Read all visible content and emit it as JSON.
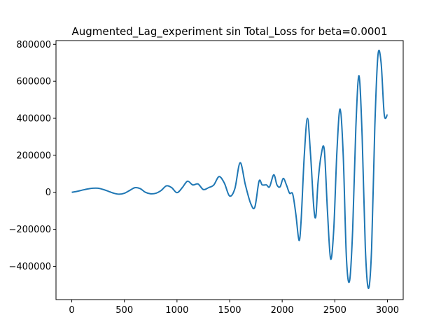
{
  "chart_data": {
    "type": "line",
    "title": "Augmented_Lag_experiment sin Total_Loss for beta=0.0001",
    "xlabel": "",
    "ylabel": "",
    "xlim": [
      -150,
      3150
    ],
    "ylim": [
      -580000,
      820000
    ],
    "grid": false,
    "x_ticks": [
      0,
      500,
      1000,
      1500,
      2000,
      2500,
      3000
    ],
    "x_tick_labels": [
      "0",
      "500",
      "1000",
      "1500",
      "2000",
      "2500",
      "3000"
    ],
    "y_ticks": [
      -400000,
      -200000,
      0,
      200000,
      400000,
      600000,
      800000
    ],
    "y_tick_labels": [
      "−400000",
      "−200000",
      "0",
      "200000",
      "400000",
      "600000",
      "800000"
    ],
    "series": [
      {
        "color": "#1f77b4",
        "x": [
          0,
          50,
          100,
          150,
          200,
          250,
          300,
          350,
          400,
          450,
          500,
          550,
          600,
          650,
          700,
          750,
          800,
          850,
          900,
          950,
          1000,
          1050,
          1100,
          1150,
          1200,
          1250,
          1300,
          1350,
          1400,
          1450,
          1500,
          1550,
          1600,
          1650,
          1700,
          1740,
          1780,
          1810,
          1850,
          1880,
          1920,
          1950,
          1980,
          2010,
          2040,
          2070,
          2100,
          2130,
          2160,
          2180,
          2210,
          2240,
          2270,
          2300,
          2320,
          2340,
          2370,
          2400,
          2430,
          2460,
          2490,
          2520,
          2550,
          2580,
          2610,
          2640,
          2670,
          2700,
          2730,
          2760,
          2790,
          2820,
          2850,
          2880,
          2910,
          2940,
          2970,
          3000
        ],
        "y": [
          0,
          5000,
          12000,
          18000,
          22000,
          22000,
          15000,
          5000,
          -5000,
          -10000,
          -5000,
          10000,
          25000,
          20000,
          0,
          -8000,
          -5000,
          10000,
          35000,
          25000,
          -2000,
          25000,
          60000,
          40000,
          45000,
          15000,
          25000,
          40000,
          85000,
          50000,
          -20000,
          20000,
          160000,
          40000,
          -60000,
          -80000,
          60000,
          40000,
          40000,
          30000,
          95000,
          40000,
          30000,
          75000,
          40000,
          -5000,
          -10000,
          -120000,
          -260000,
          -150000,
          200000,
          400000,
          200000,
          -80000,
          -130000,
          50000,
          200000,
          230000,
          -100000,
          -360000,
          -200000,
          220000,
          450000,
          200000,
          -350000,
          -480000,
          -200000,
          350000,
          630000,
          300000,
          -300000,
          -520000,
          -300000,
          350000,
          740000,
          700000,
          420000,
          420000
        ]
      }
    ]
  }
}
